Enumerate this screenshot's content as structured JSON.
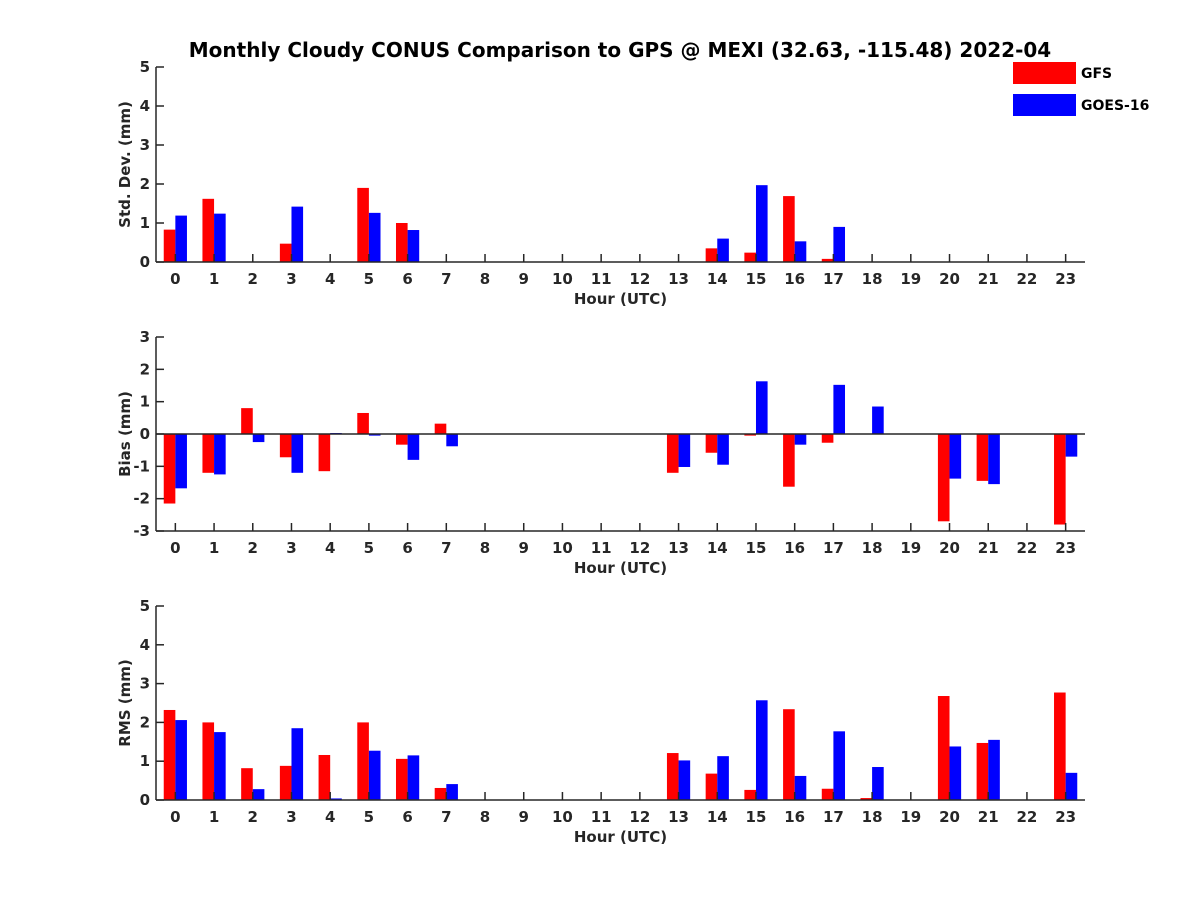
{
  "chart_data": {
    "type": "bar",
    "title": "Monthly Cloudy CONUS Comparison to GPS @ MEXI (32.63, -115.48) 2022-04",
    "legend": {
      "placement": "top-right",
      "entries": [
        {
          "name": "GFS",
          "color": "#ff0000"
        },
        {
          "name": "GOES-16",
          "color": "#0000ff"
        }
      ]
    },
    "panels": [
      {
        "ylabel": "Std. Dev. (mm)",
        "xlabel": "Hour (UTC)",
        "ylim": [
          0,
          5
        ],
        "yticks": [
          "0",
          "1",
          "2",
          "3",
          "4",
          "5"
        ],
        "categories": [
          "0",
          "1",
          "2",
          "3",
          "4",
          "5",
          "6",
          "7",
          "8",
          "9",
          "10",
          "11",
          "12",
          "13",
          "14",
          "15",
          "16",
          "17",
          "18",
          "19",
          "20",
          "21",
          "22",
          "23"
        ],
        "series": [
          {
            "name": "GFS",
            "color": "#ff0000",
            "values": [
              0.83,
              1.62,
              0,
              0.47,
              0,
              1.9,
              1.0,
              0,
              0,
              0,
              0,
              0,
              0,
              0,
              0.35,
              0.24,
              1.69,
              0.08,
              0,
              0,
              0,
              0,
              0,
              0
            ]
          },
          {
            "name": "GOES-16",
            "color": "#0000ff",
            "values": [
              1.19,
              1.24,
              0,
              1.42,
              0,
              1.26,
              0.82,
              0,
              0,
              0,
              0,
              0,
              0,
              0,
              0.6,
              1.97,
              0.53,
              0.9,
              0,
              0,
              0,
              0,
              0,
              0
            ]
          }
        ]
      },
      {
        "ylabel": "Bias (mm)",
        "xlabel": "Hour (UTC)",
        "ylim": [
          -3,
          3
        ],
        "yticks": [
          "-3",
          "-2",
          "-1",
          "0",
          "1",
          "2",
          "3"
        ],
        "categories": [
          "0",
          "1",
          "2",
          "3",
          "4",
          "5",
          "6",
          "7",
          "8",
          "9",
          "10",
          "11",
          "12",
          "13",
          "14",
          "15",
          "16",
          "17",
          "18",
          "19",
          "20",
          "21",
          "22",
          "23"
        ],
        "series": [
          {
            "name": "GFS",
            "color": "#ff0000",
            "values": [
              -2.15,
              -1.2,
              0.8,
              -0.72,
              -1.15,
              0.65,
              -0.33,
              0.32,
              0,
              0,
              0,
              0,
              0,
              -1.2,
              -0.58,
              -0.05,
              -1.63,
              -0.27,
              0,
              0,
              -2.7,
              -1.45,
              0,
              -2.8
            ]
          },
          {
            "name": "GOES-16",
            "color": "#0000ff",
            "values": [
              -1.68,
              -1.25,
              -0.25,
              -1.2,
              0.03,
              -0.05,
              -0.8,
              -0.38,
              0,
              0,
              0,
              0,
              0,
              -1.02,
              -0.95,
              1.63,
              -0.33,
              1.52,
              0.85,
              0,
              -1.38,
              -1.55,
              0,
              -0.7
            ]
          }
        ]
      },
      {
        "ylabel": "RMS (mm)",
        "xlabel": "Hour (UTC)",
        "ylim": [
          0,
          5
        ],
        "yticks": [
          "0",
          "1",
          "2",
          "3",
          "4",
          "5"
        ],
        "categories": [
          "0",
          "1",
          "2",
          "3",
          "4",
          "5",
          "6",
          "7",
          "8",
          "9",
          "10",
          "11",
          "12",
          "13",
          "14",
          "15",
          "16",
          "17",
          "18",
          "19",
          "20",
          "21",
          "22",
          "23"
        ],
        "series": [
          {
            "name": "GFS",
            "color": "#ff0000",
            "values": [
              2.32,
              2.0,
              0.82,
              0.88,
              1.16,
              2.0,
              1.06,
              0.31,
              0,
              0,
              0,
              0,
              0,
              1.21,
              0.68,
              0.26,
              2.34,
              0.29,
              0.05,
              0,
              2.68,
              1.47,
              0,
              2.77
            ]
          },
          {
            "name": "GOES-16",
            "color": "#0000ff",
            "values": [
              2.06,
              1.75,
              0.28,
              1.85,
              0.04,
              1.27,
              1.15,
              0.41,
              0,
              0,
              0,
              0,
              0,
              1.02,
              1.13,
              2.57,
              0.62,
              1.77,
              0.85,
              0,
              1.38,
              1.55,
              0,
              0.7
            ]
          }
        ]
      }
    ]
  }
}
